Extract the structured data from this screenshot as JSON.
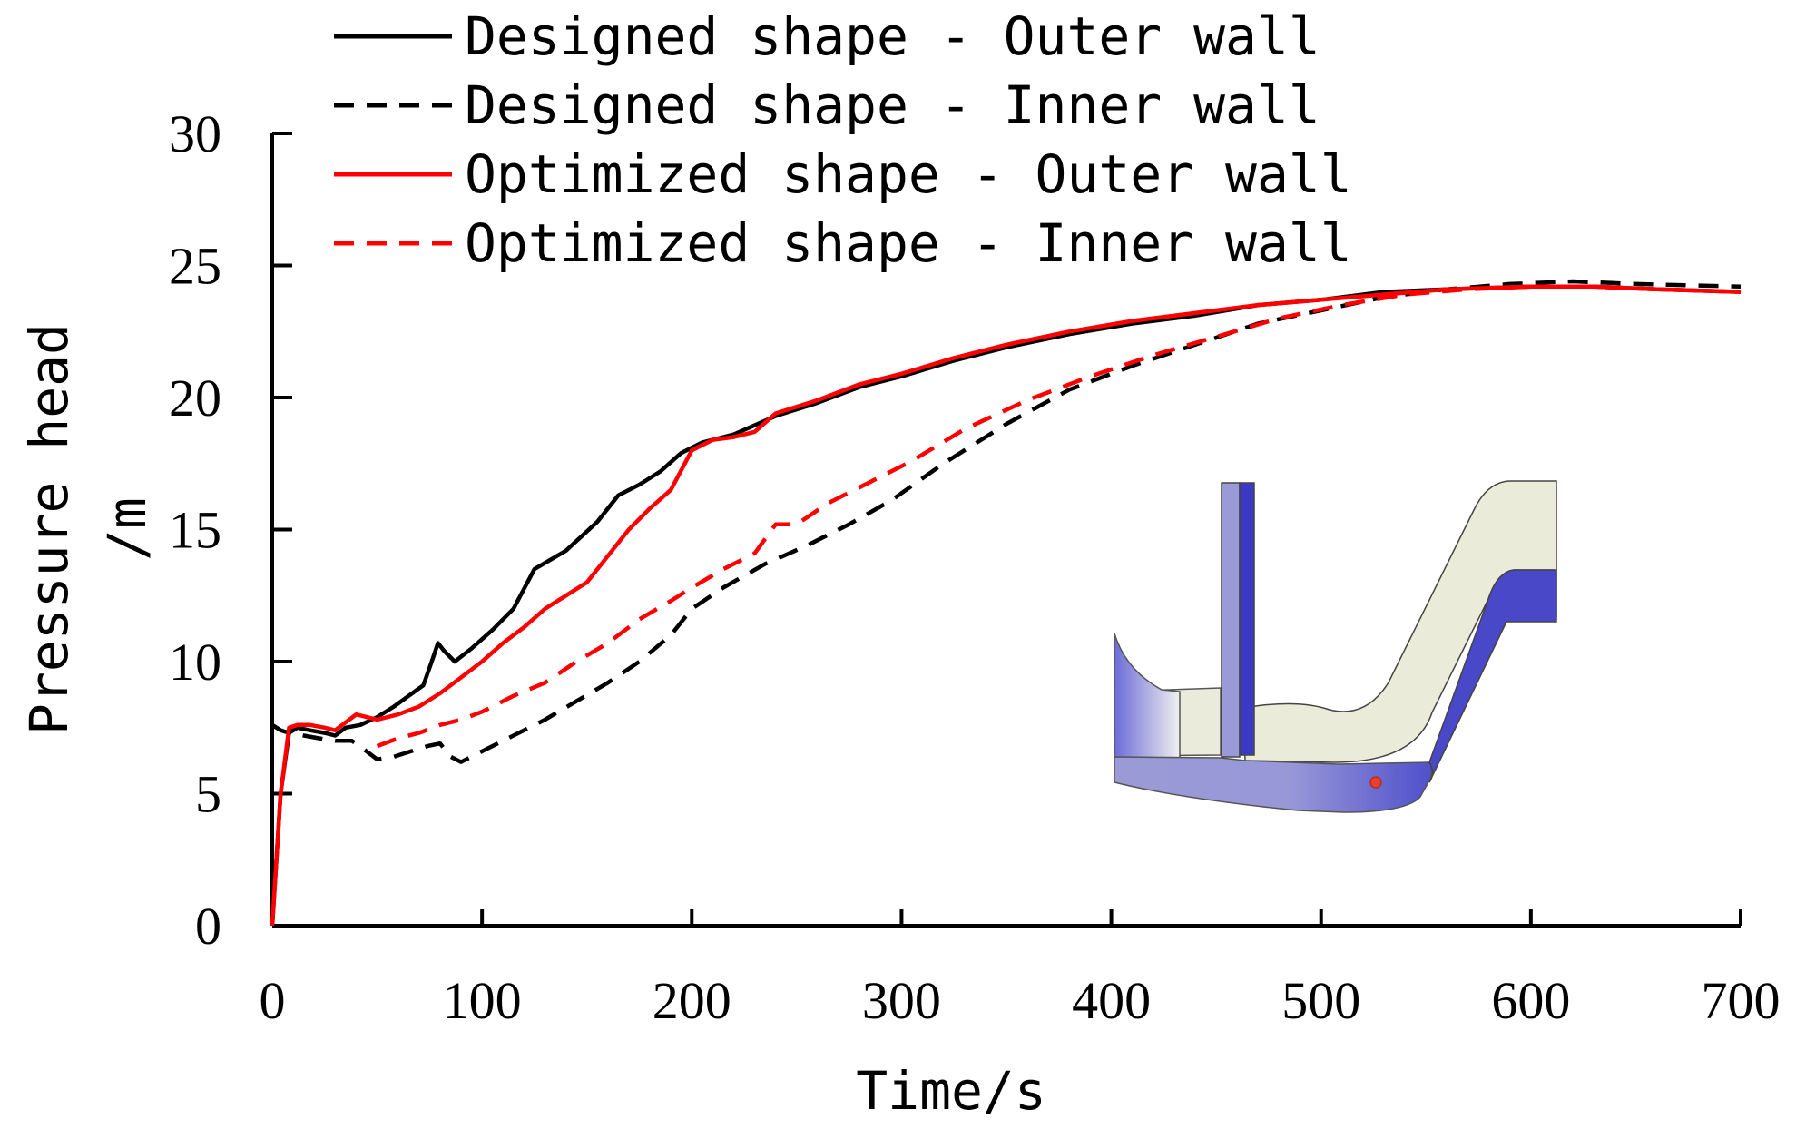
{
  "chart_data": {
    "type": "line",
    "title": "",
    "xlabel": "Time/s",
    "ylabel": "Pressure head",
    "ylabel_unit": "/m",
    "xlim": [
      0,
      700
    ],
    "ylim": [
      0,
      30
    ],
    "xticks": [
      0,
      100,
      200,
      300,
      400,
      500,
      600,
      700
    ],
    "yticks": [
      0,
      5,
      10,
      15,
      20,
      25,
      30
    ],
    "grid": false,
    "legend_position": "top-left",
    "series": [
      {
        "name": "Designed shape - Outer wall",
        "color": "#000000",
        "dash": "solid",
        "x": [
          0,
          4,
          8,
          12,
          18,
          25,
          30,
          35,
          42,
          50,
          58,
          65,
          72,
          76,
          79,
          82,
          87,
          95,
          105,
          115,
          125,
          140,
          155,
          165,
          175,
          185,
          195,
          205,
          220,
          240,
          260,
          280,
          300,
          325,
          350,
          380,
          410,
          440,
          470,
          500,
          530,
          560,
          600,
          630,
          660,
          700
        ],
        "y": [
          0,
          5,
          7.3,
          7.5,
          7.4,
          7.3,
          7.2,
          7.5,
          7.6,
          7.9,
          8.3,
          8.7,
          9.1,
          10.0,
          10.7,
          10.4,
          10.0,
          10.5,
          11.2,
          12.0,
          13.5,
          14.2,
          15.3,
          16.3,
          16.7,
          17.2,
          17.9,
          18.3,
          18.6,
          19.3,
          19.8,
          20.4,
          20.8,
          21.4,
          21.9,
          22.4,
          22.8,
          23.1,
          23.5,
          23.7,
          24.0,
          24.1,
          24.2,
          24.2,
          24.1,
          24.0
        ]
      },
      {
        "name": "Designed shape - Inner wall",
        "color": "#000000",
        "dash": "dashed",
        "x": [
          0,
          4,
          8,
          15,
          22,
          30,
          38,
          45,
          50,
          58,
          66,
          74,
          80,
          85,
          90,
          100,
          115,
          130,
          145,
          160,
          175,
          190,
          200,
          215,
          235,
          255,
          275,
          295,
          320,
          350,
          380,
          410,
          440,
          470,
          500,
          530,
          560,
          590,
          620,
          650,
          700
        ],
        "y": [
          7.6,
          7.4,
          7.3,
          7.2,
          7.1,
          7.0,
          7.0,
          6.6,
          6.3,
          6.4,
          6.6,
          6.8,
          6.9,
          6.4,
          6.2,
          6.6,
          7.2,
          7.8,
          8.5,
          9.2,
          10.0,
          11.0,
          12.0,
          12.8,
          13.7,
          14.4,
          15.2,
          16.1,
          17.5,
          19.0,
          20.3,
          21.2,
          22.0,
          22.8,
          23.3,
          23.8,
          24.1,
          24.3,
          24.4,
          24.3,
          24.2
        ]
      },
      {
        "name": "Optimized shape - Outer wall",
        "color": "#ff0000",
        "dash": "solid",
        "x": [
          0,
          4,
          8,
          12,
          18,
          25,
          30,
          35,
          40,
          45,
          50,
          60,
          70,
          80,
          90,
          100,
          110,
          120,
          130,
          140,
          150,
          160,
          170,
          180,
          190,
          200,
          210,
          220,
          230,
          240,
          260,
          280,
          300,
          325,
          350,
          380,
          410,
          440,
          470,
          500,
          530,
          560,
          600,
          630,
          660,
          700
        ],
        "y": [
          0,
          5,
          7.5,
          7.6,
          7.6,
          7.5,
          7.4,
          7.7,
          8.0,
          7.9,
          7.8,
          8.0,
          8.3,
          8.8,
          9.4,
          10.0,
          10.7,
          11.3,
          12.0,
          12.5,
          13.0,
          14.0,
          15.0,
          15.8,
          16.5,
          18.0,
          18.4,
          18.5,
          18.7,
          19.4,
          19.9,
          20.5,
          20.9,
          21.5,
          22.0,
          22.5,
          22.9,
          23.2,
          23.5,
          23.7,
          23.9,
          24.1,
          24.2,
          24.2,
          24.1,
          24.0
        ]
      },
      {
        "name": "Optimized shape - Inner wall",
        "color": "#ff0000",
        "dash": "dashed",
        "x": [
          50,
          60,
          70,
          80,
          90,
          100,
          115,
          130,
          145,
          160,
          175,
          190,
          200,
          215,
          230,
          240,
          250,
          265,
          285,
          305,
          330,
          360,
          390,
          420,
          450,
          480,
          510,
          540,
          570,
          600,
          630,
          660,
          700
        ],
        "y": [
          6.8,
          7.1,
          7.3,
          7.6,
          7.8,
          8.1,
          8.7,
          9.2,
          10.0,
          10.7,
          11.6,
          12.3,
          12.8,
          13.5,
          14.1,
          15.2,
          15.2,
          16.0,
          16.8,
          17.6,
          18.8,
          19.9,
          20.8,
          21.6,
          22.3,
          23.0,
          23.5,
          23.9,
          24.1,
          24.2,
          24.2,
          24.1,
          24.0
        ]
      }
    ]
  },
  "inset": {
    "name": "pipe bend geometry",
    "marker_color": "#e8402a"
  }
}
